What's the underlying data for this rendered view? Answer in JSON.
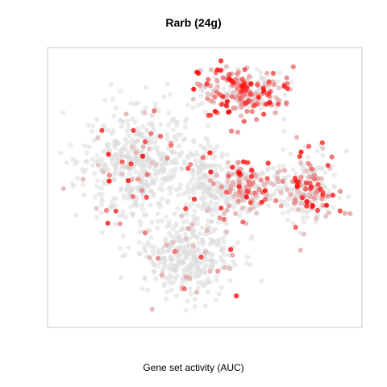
{
  "chart_data": {
    "type": "scatter",
    "title": "Rarb (24g)",
    "xlabel": "Gene set activity (AUC)",
    "ylabel": "",
    "grid": false,
    "legend": "none",
    "colors": {
      "low": "#dcdcdc",
      "high": "#ff0000",
      "frame": "#c8c8c8"
    },
    "clusters": [
      {
        "name": "left",
        "cx": 0.27,
        "cy": 0.58,
        "rx": 0.18,
        "ry": 0.2,
        "n": 520,
        "high_frac": 0.08
      },
      {
        "name": "top-right",
        "cx": 0.62,
        "cy": 0.86,
        "rx": 0.13,
        "ry": 0.09,
        "n": 260,
        "high_frac": 0.7
      },
      {
        "name": "center",
        "cx": 0.5,
        "cy": 0.52,
        "rx": 0.06,
        "ry": 0.15,
        "n": 140,
        "high_frac": 0.05
      },
      {
        "name": "mid-right",
        "cx": 0.63,
        "cy": 0.48,
        "rx": 0.09,
        "ry": 0.1,
        "n": 220,
        "high_frac": 0.45
      },
      {
        "name": "right",
        "cx": 0.84,
        "cy": 0.48,
        "rx": 0.1,
        "ry": 0.13,
        "n": 240,
        "high_frac": 0.35
      },
      {
        "name": "bottom",
        "cx": 0.45,
        "cy": 0.22,
        "rx": 0.15,
        "ry": 0.14,
        "n": 360,
        "high_frac": 0.06
      }
    ]
  }
}
